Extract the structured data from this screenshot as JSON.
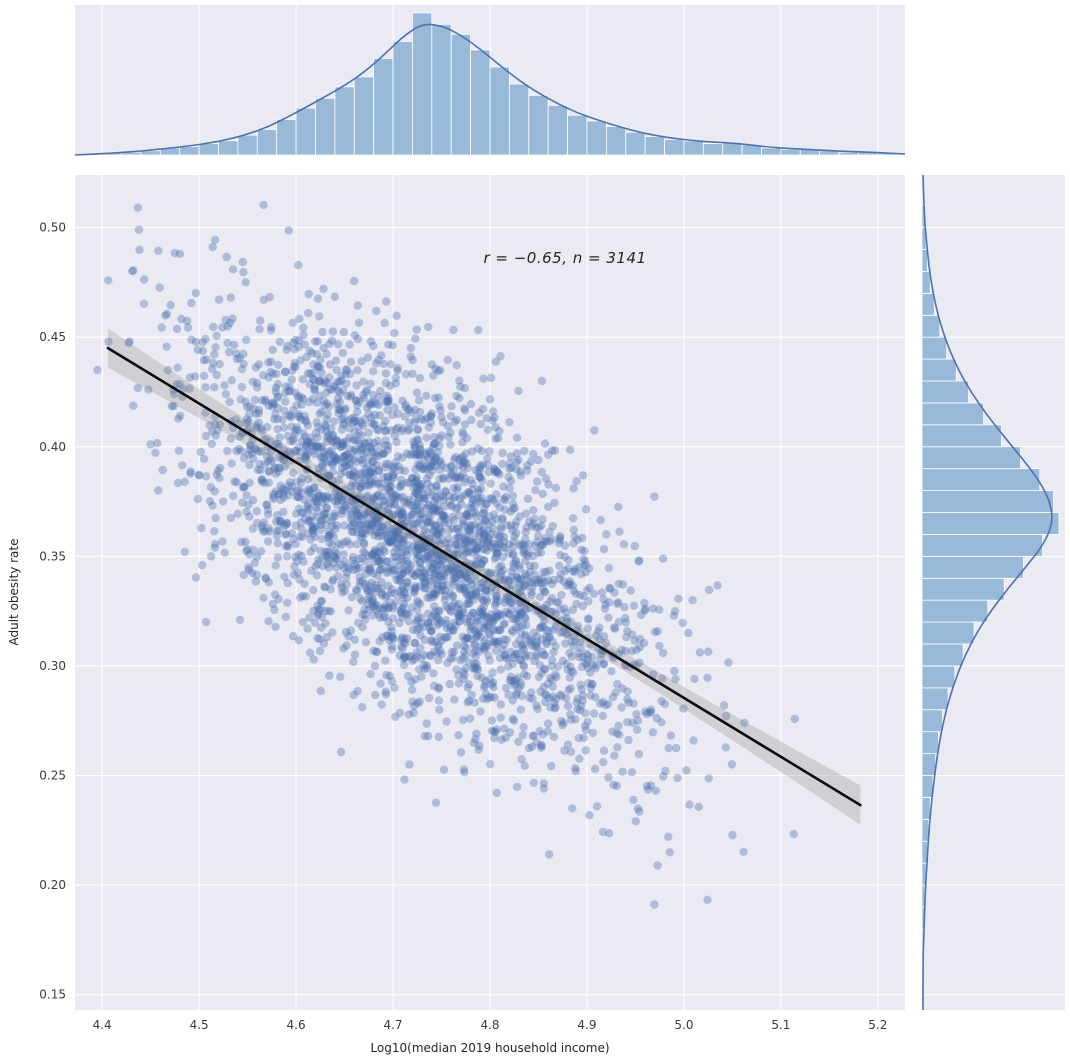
{
  "figure": {
    "background": "#ffffff"
  },
  "chart_data": {
    "type": "scatter",
    "title": "",
    "xlabel": "Log10(median 2019 household income)",
    "ylabel": "Adult obesity rate",
    "annotation": "r = −0.65, n = 3141",
    "stats": {
      "r": -0.65,
      "n": 3141
    },
    "grid": true,
    "legend": null,
    "xlim": [
      4.372,
      5.228
    ],
    "ylim": [
      0.143,
      0.524
    ],
    "x_ticks": [
      {
        "v": 4.4,
        "label": "4.4"
      },
      {
        "v": 4.5,
        "label": "4.5"
      },
      {
        "v": 4.6,
        "label": "4.6"
      },
      {
        "v": 4.7,
        "label": "4.7"
      },
      {
        "v": 4.8,
        "label": "4.8"
      },
      {
        "v": 4.9,
        "label": "4.9"
      },
      {
        "v": 5.0,
        "label": "5.0"
      },
      {
        "v": 5.1,
        "label": "5.1"
      },
      {
        "v": 5.2,
        "label": "5.2"
      }
    ],
    "y_ticks": [
      {
        "v": 0.15,
        "label": "0.15"
      },
      {
        "v": 0.2,
        "label": "0.20"
      },
      {
        "v": 0.25,
        "label": "0.25"
      },
      {
        "v": 0.3,
        "label": "0.30"
      },
      {
        "v": 0.35,
        "label": "0.35"
      },
      {
        "v": 0.4,
        "label": "0.40"
      },
      {
        "v": 0.45,
        "label": "0.45"
      },
      {
        "v": 0.5,
        "label": "0.50"
      }
    ],
    "regression": {
      "x0": 4.406,
      "y0": 0.445,
      "x1": 5.182,
      "y1": 0.2365,
      "slope": -0.2687,
      "intercept": 1.6289,
      "ci_halfwidth_center": 0.0035,
      "ci_halfwidth_end": 0.009
    },
    "scatter_model": {
      "seed": 42,
      "n": 3141,
      "x_mean": 4.723,
      "x_std": 0.115,
      "slope": -0.2687,
      "intercept": 1.6289,
      "resid_std": 0.0365
    },
    "marginal_x": {
      "bin_start": 4.4,
      "bin_width": 0.02,
      "heights": [
        0.02,
        0.02,
        0.03,
        0.05,
        0.06,
        0.08,
        0.1,
        0.14,
        0.18,
        0.25,
        0.33,
        0.4,
        0.48,
        0.55,
        0.68,
        0.8,
        1.0,
        0.92,
        0.85,
        0.74,
        0.62,
        0.5,
        0.42,
        0.35,
        0.28,
        0.24,
        0.2,
        0.16,
        0.13,
        0.11,
        0.1,
        0.08,
        0.09,
        0.07,
        0.05,
        0.04,
        0.04,
        0.03,
        0.02,
        0.02,
        0.02
      ]
    },
    "marginal_y": {
      "bin_start": 0.16,
      "bin_width": 0.01,
      "heights": [
        0.01,
        0.01,
        0.02,
        0.02,
        0.03,
        0.04,
        0.05,
        0.06,
        0.08,
        0.1,
        0.12,
        0.15,
        0.19,
        0.24,
        0.3,
        0.38,
        0.48,
        0.6,
        0.74,
        0.88,
        1.0,
        0.96,
        0.86,
        0.72,
        0.58,
        0.45,
        0.34,
        0.25,
        0.18,
        0.13,
        0.09,
        0.06,
        0.04,
        0.03,
        0.02
      ]
    },
    "style": {
      "panel_bg": "#eaeaf2",
      "grid_color": "#ffffff",
      "point_color": "#4c72b0",
      "point_opacity": 0.38,
      "point_radius": 4.2,
      "hist_fill": "#6d9ecb",
      "hist_opacity": 0.65,
      "hist_edge": "#ffffff",
      "kde_color": "#4c72b0",
      "reg_line_color": "#0d0d0d",
      "ci_color": "#888888",
      "ci_opacity": 0.28,
      "tick_color": "#3b3b3b"
    }
  }
}
